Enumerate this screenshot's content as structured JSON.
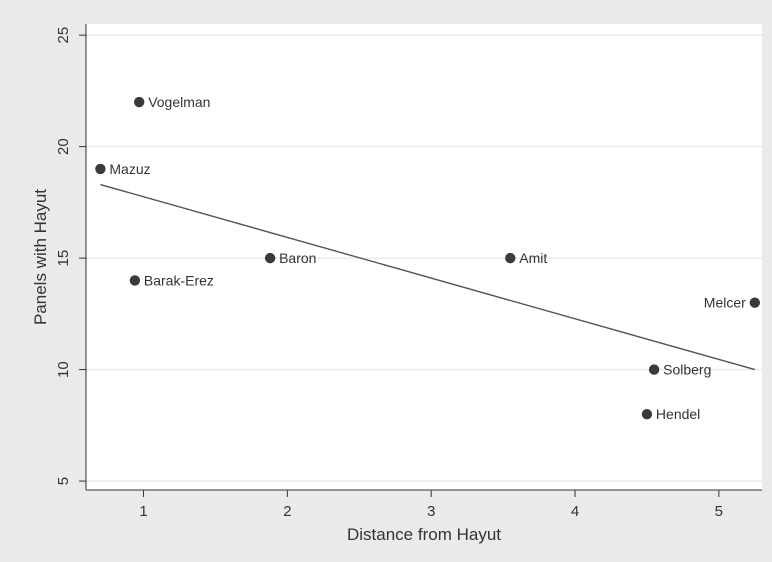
{
  "chart_data": {
    "type": "scatter",
    "xlabel": "Distance from Hayut",
    "ylabel": "Panels with Hayut",
    "xlim": [
      0.6,
      5.3
    ],
    "ylim": [
      4.6,
      25.5
    ],
    "xticks": [
      "1",
      "2",
      "3",
      "4",
      "5"
    ],
    "yticks": [
      "5",
      "10",
      "15",
      "20",
      "25"
    ],
    "grid": "horizontal",
    "points": [
      {
        "label": "Vogelman",
        "x": 0.97,
        "y": 22,
        "label_side": "right"
      },
      {
        "label": "Mazuz",
        "x": 0.7,
        "y": 19,
        "label_side": "right"
      },
      {
        "label": "Baron",
        "x": 1.88,
        "y": 15,
        "label_side": "right"
      },
      {
        "label": "Barak-Erez",
        "x": 0.94,
        "y": 14,
        "label_side": "right"
      },
      {
        "label": "Amit",
        "x": 3.55,
        "y": 15,
        "label_side": "right"
      },
      {
        "label": "Melcer",
        "x": 5.25,
        "y": 13,
        "label_side": "left"
      },
      {
        "label": "Solberg",
        "x": 4.55,
        "y": 10,
        "label_side": "right"
      },
      {
        "label": "Hendel",
        "x": 4.5,
        "y": 8,
        "label_side": "right"
      }
    ],
    "fit_line": {
      "x": [
        0.7,
        5.25
      ],
      "y": [
        18.3,
        10.0
      ]
    },
    "colors": {
      "outer_background": "#eaeaea",
      "plot_background": "#ffffff",
      "gridline": "#eaeaea",
      "marker": "#3a3a3a",
      "fit_line": "#555555",
      "axis": "#333333"
    }
  }
}
